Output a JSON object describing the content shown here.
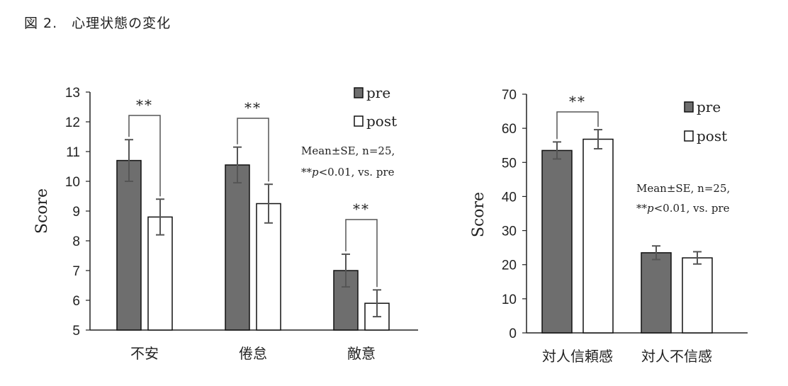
{
  "caption": "図 2.　心理状態の変化",
  "colors": {
    "pre": "#6e6e6e",
    "post": "#ffffff",
    "axis": "#222222",
    "error": "#555555"
  },
  "chart_data": [
    {
      "type": "bar",
      "ylabel": "Score",
      "ylim": [
        5,
        13
      ],
      "yticks": [
        5,
        6,
        7,
        8,
        9,
        10,
        11,
        12,
        13
      ],
      "categories": [
        "不安",
        "倦怠",
        "敵意"
      ],
      "series": [
        {
          "name": "pre",
          "values": [
            10.7,
            10.55,
            7.0
          ],
          "errors": [
            0.7,
            0.6,
            0.55
          ]
        },
        {
          "name": "post",
          "values": [
            8.8,
            9.25,
            5.9
          ],
          "errors": [
            0.6,
            0.65,
            0.45
          ]
        }
      ],
      "significance": [
        {
          "category": "不安",
          "label": "**"
        },
        {
          "category": "倦怠",
          "label": "**"
        },
        {
          "category": "敵意",
          "label": "**"
        }
      ],
      "legend": [
        "pre",
        "post"
      ],
      "note": [
        "Mean±SE, n=25,",
        "**p<0.01, vs. pre"
      ]
    },
    {
      "type": "bar",
      "ylabel": "Score",
      "ylim": [
        0,
        70
      ],
      "yticks": [
        0,
        10,
        20,
        30,
        40,
        50,
        60,
        70
      ],
      "categories": [
        "対人信頼感",
        "対人不信感"
      ],
      "series": [
        {
          "name": "pre",
          "values": [
            53.5,
            23.5
          ],
          "errors": [
            2.5,
            2.0
          ]
        },
        {
          "name": "post",
          "values": [
            56.8,
            22.0
          ],
          "errors": [
            2.8,
            1.8
          ]
        }
      ],
      "significance": [
        {
          "category": "対人信頼感",
          "label": "**"
        }
      ],
      "legend": [
        "pre",
        "post"
      ],
      "note": [
        "Mean±SE, n=25,",
        "**p<0.01, vs. pre"
      ]
    }
  ]
}
